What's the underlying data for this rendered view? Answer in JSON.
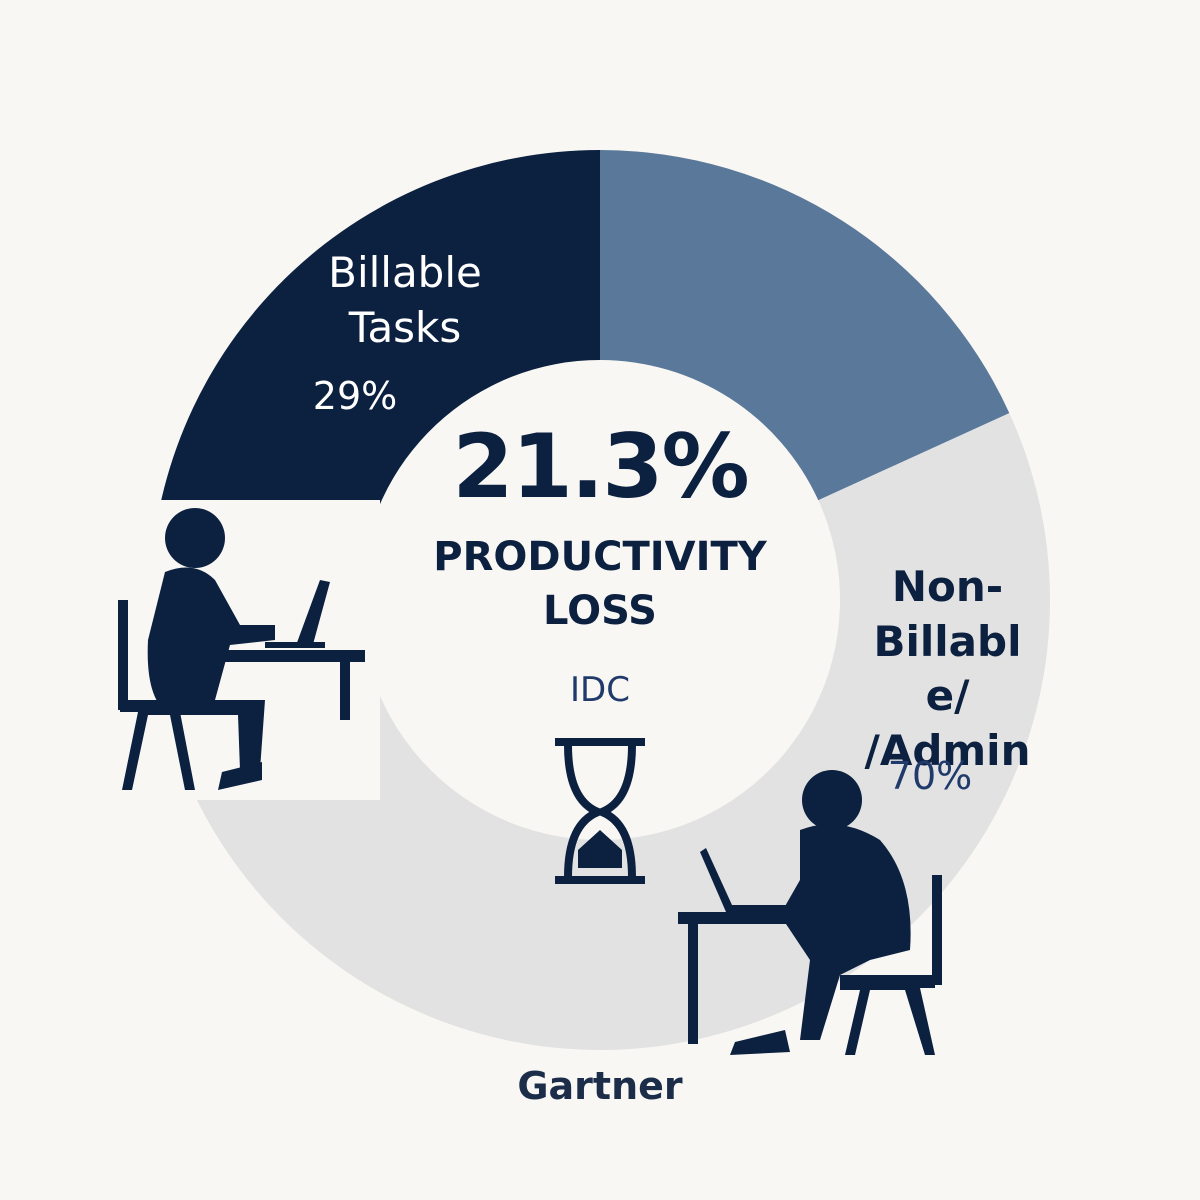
{
  "chart_data": {
    "type": "donut",
    "headline": "21.3%",
    "subtitle": "PRODUCTIVITY LOSS",
    "sources": [
      "IDC",
      "Gartner"
    ],
    "categories": [
      "Billable Tasks",
      null,
      "Non-Billable/ /Admin"
    ],
    "values": [
      29,
      22,
      70
    ],
    "value_labels": [
      "29%",
      null,
      "70%"
    ],
    "colors": [
      "#0c2040",
      "#5a7899",
      "#e2e2e2"
    ]
  }
}
